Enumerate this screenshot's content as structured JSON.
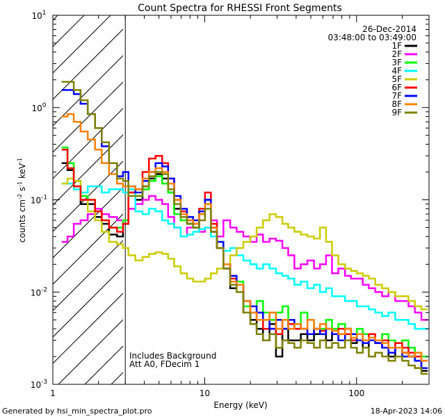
{
  "chart_data": {
    "type": "line",
    "title": "Count Spectra for RHESSI Front Segments",
    "xlabel": "Energy (keV)",
    "ylabel": "counts cm-2 s-1 keV-1",
    "ylabel_parts": {
      "base": "counts cm",
      "sup1": "-2",
      "mid1": " s",
      "sup2": "-1",
      "mid2": " keV",
      "sup3": "-1"
    },
    "x_scale": "log",
    "y_scale": "log",
    "xlim": [
      1,
      300
    ],
    "ylim": [
      0.001,
      10
    ],
    "x_ticks": [
      {
        "v": 1,
        "label": "1"
      },
      {
        "v": 10,
        "label": "10"
      },
      {
        "v": 100,
        "label": "100"
      }
    ],
    "y_ticks": [
      {
        "v": 0.001,
        "base": "10",
        "exp": "-3"
      },
      {
        "v": 0.01,
        "base": "10",
        "exp": "-2"
      },
      {
        "v": 0.1,
        "base": "10",
        "exp": "-1"
      },
      {
        "v": 1,
        "base": "10",
        "exp": "0"
      },
      {
        "v": 10,
        "base": "10",
        "exp": "1"
      }
    ],
    "date": "26-Dec-2014",
    "time_range": "03:48:00 to 03:49:00",
    "attenuator_cutoff_kev": 3,
    "annotations": [
      "Includes Background",
      "Att A0, FDecim 1"
    ],
    "series": [
      {
        "name": "1F",
        "color": "#000000",
        "x": [
          1.2,
          1.3,
          1.45,
          1.6,
          1.8,
          2.0,
          2.2,
          2.5,
          2.8,
          3.0,
          3.3,
          3.7,
          4.1,
          4.5,
          5.0,
          5.5,
          6.0,
          6.6,
          7.3,
          8.0,
          8.8,
          9.6,
          10.5,
          11.5,
          12.6,
          14,
          15.5,
          17,
          19,
          21,
          23,
          25.5,
          28,
          31,
          34,
          37,
          41,
          45,
          50,
          55,
          60,
          66,
          72,
          80,
          88,
          96,
          105,
          115,
          126,
          140,
          155,
          170,
          190,
          210,
          230,
          255,
          280
        ],
        "y": [
          0.25,
          0.21,
          0.14,
          0.09,
          0.09,
          0.065,
          0.055,
          0.042,
          0.04,
          0.055,
          0.12,
          0.1,
          0.14,
          0.17,
          0.19,
          0.17,
          0.12,
          0.08,
          0.065,
          0.055,
          0.05,
          0.07,
          0.1,
          0.045,
          0.03,
          0.018,
          0.011,
          0.012,
          0.006,
          0.005,
          0.004,
          0.003,
          0.0045,
          0.002,
          0.004,
          0.003,
          0.003,
          0.0035,
          0.003,
          0.0035,
          0.0045,
          0.003,
          0.0035,
          0.003,
          0.004,
          0.0028,
          0.003,
          0.0025,
          0.003,
          0.0028,
          0.0025,
          0.002,
          0.0025,
          0.0022,
          0.002,
          0.0018,
          0.0014
        ]
      },
      {
        "name": "2F",
        "color": "#ff00ff",
        "x": [
          1.2,
          1.3,
          1.45,
          1.6,
          1.8,
          2.0,
          2.2,
          2.5,
          2.8,
          3.0,
          3.3,
          3.7,
          4.1,
          4.5,
          5.0,
          5.5,
          6.0,
          6.6,
          7.3,
          8.0,
          8.8,
          9.6,
          10.5,
          11.5,
          12.6,
          14,
          15.5,
          17,
          19,
          21,
          23,
          25.5,
          28,
          31,
          34,
          37,
          41,
          45,
          50,
          55,
          60,
          66,
          72,
          80,
          88,
          96,
          105,
          115,
          126,
          140,
          155,
          170,
          190,
          210,
          230,
          255,
          280
        ],
        "y": [
          0.035,
          0.04,
          0.055,
          0.06,
          0.07,
          0.08,
          0.07,
          0.065,
          0.06,
          0.06,
          0.08,
          0.09,
          0.1,
          0.11,
          0.1,
          0.09,
          0.065,
          0.05,
          0.04,
          0.05,
          0.055,
          0.045,
          0.05,
          0.06,
          0.04,
          0.06,
          0.05,
          0.045,
          0.04,
          0.035,
          0.042,
          0.035,
          0.038,
          0.036,
          0.03,
          0.025,
          0.018,
          0.02,
          0.022,
          0.018,
          0.02,
          0.025,
          0.016,
          0.018,
          0.015,
          0.014,
          0.014,
          0.012,
          0.011,
          0.01,
          0.009,
          0.01,
          0.008,
          0.008,
          0.007,
          0.006,
          0.005
        ]
      },
      {
        "name": "3F",
        "color": "#00ff00",
        "x": [
          1.2,
          1.3,
          1.45,
          1.6,
          1.8,
          2.0,
          2.2,
          2.5,
          2.8,
          3.0,
          3.3,
          3.7,
          4.1,
          4.5,
          5.0,
          5.5,
          6.0,
          6.6,
          7.3,
          8.0,
          8.8,
          9.6,
          10.5,
          11.5,
          12.6,
          14,
          15.5,
          17,
          19,
          21,
          23,
          25.5,
          28,
          31,
          34,
          37,
          41,
          45,
          50,
          55,
          60,
          66,
          72,
          80,
          88,
          96,
          105,
          115,
          126,
          140,
          155,
          170,
          190,
          210,
          230,
          255,
          280
        ],
        "y": [
          0.37,
          0.25,
          0.16,
          0.11,
          0.1,
          0.075,
          0.06,
          0.05,
          0.05,
          0.06,
          0.12,
          0.11,
          0.13,
          0.16,
          0.18,
          0.15,
          0.12,
          0.07,
          0.06,
          0.055,
          0.05,
          0.07,
          0.09,
          0.05,
          0.035,
          0.02,
          0.012,
          0.013,
          0.007,
          0.006,
          0.008,
          0.006,
          0.005,
          0.006,
          0.007,
          0.005,
          0.004,
          0.006,
          0.005,
          0.004,
          0.004,
          0.005,
          0.004,
          0.0045,
          0.004,
          0.0035,
          0.004,
          0.0035,
          0.0035,
          0.003,
          0.0035,
          0.003,
          0.0028,
          0.003,
          0.0025,
          0.0022,
          0.002
        ]
      },
      {
        "name": "4F",
        "color": "#00ffff",
        "x": [
          1.2,
          1.3,
          1.45,
          1.6,
          1.8,
          2.0,
          2.2,
          2.5,
          2.8,
          3.0,
          3.3,
          3.7,
          4.1,
          4.5,
          5.0,
          5.5,
          6.0,
          6.6,
          7.3,
          8.0,
          8.8,
          9.6,
          10.5,
          11.5,
          12.6,
          14,
          15.5,
          17,
          19,
          21,
          23,
          25.5,
          28,
          31,
          34,
          37,
          41,
          45,
          50,
          55,
          60,
          66,
          72,
          80,
          88,
          96,
          105,
          115,
          126,
          140,
          155,
          170,
          190,
          210,
          230,
          255,
          280
        ],
        "y": [
          0.15,
          0.15,
          0.13,
          0.12,
          0.14,
          0.14,
          0.12,
          0.13,
          0.13,
          0.12,
          0.13,
          0.075,
          0.07,
          0.08,
          0.075,
          0.06,
          0.055,
          0.05,
          0.04,
          0.042,
          0.045,
          0.048,
          0.05,
          0.04,
          0.03,
          0.028,
          0.03,
          0.025,
          0.022,
          0.02,
          0.018,
          0.02,
          0.018,
          0.016,
          0.015,
          0.014,
          0.012,
          0.013,
          0.011,
          0.012,
          0.01,
          0.011,
          0.009,
          0.009,
          0.008,
          0.008,
          0.007,
          0.007,
          0.0065,
          0.006,
          0.0055,
          0.006,
          0.005,
          0.005,
          0.0045,
          0.004,
          0.004
        ]
      },
      {
        "name": "5F",
        "color": "#cccc00",
        "x": [
          1.2,
          1.3,
          1.45,
          1.6,
          1.8,
          2.0,
          2.2,
          2.5,
          2.8,
          3.0,
          3.3,
          3.7,
          4.1,
          4.5,
          5.0,
          5.5,
          6.0,
          6.6,
          7.3,
          8.0,
          8.8,
          9.6,
          10.5,
          11.5,
          12.6,
          14,
          15.5,
          17,
          19,
          21,
          23,
          25.5,
          28,
          31,
          34,
          37,
          41,
          45,
          50,
          55,
          60,
          66,
          72,
          80,
          88,
          96,
          105,
          115,
          126,
          140,
          155,
          170,
          190,
          210,
          230,
          255,
          280
        ],
        "y": [
          0.15,
          0.17,
          0.16,
          0.1,
          0.075,
          0.06,
          0.045,
          0.035,
          0.033,
          0.03,
          0.025,
          0.022,
          0.024,
          0.026,
          0.027,
          0.026,
          0.023,
          0.019,
          0.016,
          0.014,
          0.013,
          0.013,
          0.014,
          0.016,
          0.018,
          0.02,
          0.025,
          0.03,
          0.035,
          0.04,
          0.05,
          0.06,
          0.07,
          0.065,
          0.055,
          0.05,
          0.045,
          0.042,
          0.04,
          0.038,
          0.05,
          0.035,
          0.025,
          0.02,
          0.018,
          0.017,
          0.016,
          0.015,
          0.014,
          0.012,
          0.011,
          0.01,
          0.009,
          0.009,
          0.008,
          0.007,
          0.0065
        ]
      },
      {
        "name": "6F",
        "color": "#ff0000",
        "x": [
          1.2,
          1.3,
          1.45,
          1.6,
          1.8,
          2.0,
          2.2,
          2.5,
          2.8,
          3.0,
          3.3,
          3.7,
          4.1,
          4.5,
          5.0,
          5.5,
          6.0,
          6.6,
          7.3,
          8.0,
          8.8,
          9.6,
          10.5,
          11.5,
          12.6,
          14,
          15.5,
          17,
          19,
          21,
          23,
          25.5,
          28,
          31,
          34,
          37,
          41,
          45,
          50,
          55,
          60,
          66,
          72,
          80,
          88,
          96,
          105,
          115,
          126,
          140,
          155,
          170,
          190,
          210,
          230,
          255,
          280
        ],
        "y": [
          0.35,
          0.22,
          0.14,
          0.1,
          0.1,
          0.075,
          0.06,
          0.05,
          0.045,
          0.055,
          0.12,
          0.13,
          0.2,
          0.28,
          0.3,
          0.25,
          0.17,
          0.1,
          0.075,
          0.06,
          0.055,
          0.08,
          0.12,
          0.055,
          0.03,
          0.02,
          0.014,
          0.012,
          0.008,
          0.006,
          0.005,
          0.004,
          0.004,
          0.0035,
          0.005,
          0.0045,
          0.004,
          0.004,
          0.0035,
          0.004,
          0.0038,
          0.004,
          0.0035,
          0.004,
          0.0035,
          0.003,
          0.0035,
          0.003,
          0.0035,
          0.0028,
          0.003,
          0.0025,
          0.0028,
          0.0025,
          0.0022,
          0.002,
          0.0018
        ]
      },
      {
        "name": "7F",
        "color": "#0000ff",
        "x": [
          1.2,
          1.3,
          1.45,
          1.6,
          1.8,
          2.0,
          2.2,
          2.5,
          2.8,
          3.0,
          3.3,
          3.7,
          4.1,
          4.5,
          5.0,
          5.5,
          6.0,
          6.6,
          7.3,
          8.0,
          8.8,
          9.6,
          10.5,
          11.5,
          12.6,
          14,
          15.5,
          17,
          19,
          21,
          23,
          25.5,
          28,
          31,
          34,
          37,
          41,
          45,
          50,
          55,
          60,
          66,
          72,
          80,
          88,
          96,
          105,
          115,
          126,
          140,
          155,
          170,
          190,
          210,
          230,
          255,
          280
        ],
        "y": [
          1.55,
          1.55,
          1.4,
          1.1,
          0.85,
          0.6,
          0.38,
          0.25,
          0.18,
          0.2,
          0.14,
          0.12,
          0.16,
          0.2,
          0.25,
          0.23,
          0.17,
          0.11,
          0.08,
          0.065,
          0.06,
          0.075,
          0.1,
          0.05,
          0.035,
          0.02,
          0.015,
          0.012,
          0.008,
          0.007,
          0.006,
          0.005,
          0.004,
          0.005,
          0.004,
          0.005,
          0.0045,
          0.004,
          0.0035,
          0.004,
          0.0035,
          0.004,
          0.0035,
          0.003,
          0.004,
          0.0035,
          0.003,
          0.0028,
          0.003,
          0.0028,
          0.0025,
          0.0022,
          0.0025,
          0.002,
          0.002,
          0.0018,
          0.0015
        ]
      },
      {
        "name": "8F",
        "color": "#ff8000",
        "x": [
          1.2,
          1.3,
          1.45,
          1.6,
          1.8,
          2.0,
          2.2,
          2.5,
          2.8,
          3.0,
          3.3,
          3.7,
          4.1,
          4.5,
          5.0,
          5.5,
          6.0,
          6.6,
          7.3,
          8.0,
          8.8,
          9.6,
          10.5,
          11.5,
          12.6,
          14,
          15.5,
          17,
          19,
          21,
          23,
          25.5,
          28,
          31,
          34,
          37,
          41,
          45,
          50,
          55,
          60,
          66,
          72,
          80,
          88,
          96,
          105,
          115,
          126,
          140,
          155,
          170,
          190,
          210,
          230,
          255,
          280
        ],
        "y": [
          0.8,
          0.85,
          0.7,
          0.55,
          0.45,
          0.35,
          0.25,
          0.19,
          0.15,
          0.14,
          0.14,
          0.13,
          0.17,
          0.2,
          0.22,
          0.2,
          0.15,
          0.1,
          0.07,
          0.06,
          0.055,
          0.07,
          0.09,
          0.05,
          0.03,
          0.02,
          0.013,
          0.012,
          0.008,
          0.006,
          0.005,
          0.005,
          0.006,
          0.004,
          0.005,
          0.004,
          0.0045,
          0.004,
          0.005,
          0.004,
          0.0045,
          0.004,
          0.0038,
          0.0035,
          0.004,
          0.0032,
          0.0035,
          0.003,
          0.0032,
          0.003,
          0.0028,
          0.0025,
          0.0025,
          0.0022,
          0.002,
          0.0022,
          0.0018
        ]
      },
      {
        "name": "9F",
        "color": "#808000",
        "x": [
          1.2,
          1.3,
          1.45,
          1.6,
          1.8,
          2.0,
          2.2,
          2.5,
          2.8,
          3.0,
          3.3,
          3.7,
          4.1,
          4.5,
          5.0,
          5.5,
          6.0,
          6.6,
          7.3,
          8.0,
          8.8,
          9.6,
          10.5,
          11.5,
          12.6,
          14,
          15.5,
          17,
          19,
          21,
          23,
          25.5,
          28,
          31,
          34,
          37,
          41,
          45,
          50,
          55,
          60,
          66,
          72,
          80,
          88,
          96,
          105,
          115,
          126,
          140,
          155,
          170,
          190,
          210,
          230,
          255,
          280
        ],
        "y": [
          1.9,
          1.9,
          1.55,
          1.2,
          0.85,
          0.6,
          0.42,
          0.25,
          0.17,
          0.16,
          0.11,
          0.11,
          0.14,
          0.18,
          0.2,
          0.19,
          0.13,
          0.09,
          0.065,
          0.055,
          0.05,
          0.06,
          0.08,
          0.045,
          0.03,
          0.018,
          0.012,
          0.01,
          0.006,
          0.0045,
          0.0035,
          0.003,
          0.0035,
          0.0025,
          0.003,
          0.0028,
          0.0025,
          0.003,
          0.0028,
          0.0025,
          0.003,
          0.0025,
          0.0028,
          0.0025,
          0.003,
          0.0025,
          0.0022,
          0.0025,
          0.002,
          0.0022,
          0.002,
          0.0018,
          0.002,
          0.0018,
          0.0016,
          0.0015,
          0.0013
        ]
      }
    ]
  },
  "footer": {
    "generated_by": "Generated by hsi_min_spectra_plot.pro",
    "timestamp": "18-Apr-2023 14:06"
  }
}
